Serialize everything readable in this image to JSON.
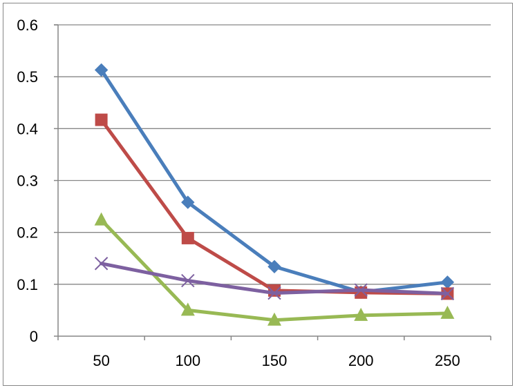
{
  "chart_data": {
    "type": "line",
    "title": "",
    "xlabel": "",
    "ylabel": "",
    "categories": [
      "50",
      "100",
      "150",
      "200",
      "250"
    ],
    "ylim": [
      0,
      0.6
    ],
    "yticks": [
      "0",
      "0.1",
      "0.2",
      "0.3",
      "0.4",
      "0.5",
      "0.6"
    ],
    "grid": "horizontal",
    "legend": "none",
    "series": [
      {
        "color": "#4a7ebb",
        "marker": "diamond",
        "values": [
          0.513,
          0.258,
          0.134,
          0.085,
          0.104
        ]
      },
      {
        "color": "#be4b48",
        "marker": "square",
        "values": [
          0.417,
          0.189,
          0.088,
          0.084,
          0.082
        ]
      },
      {
        "color": "#98b954",
        "marker": "triangle",
        "values": [
          0.224,
          0.05,
          0.031,
          0.04,
          0.044
        ]
      },
      {
        "color": "#7d60a0",
        "marker": "x",
        "values": [
          0.14,
          0.107,
          0.083,
          0.089,
          0.082
        ]
      }
    ]
  }
}
